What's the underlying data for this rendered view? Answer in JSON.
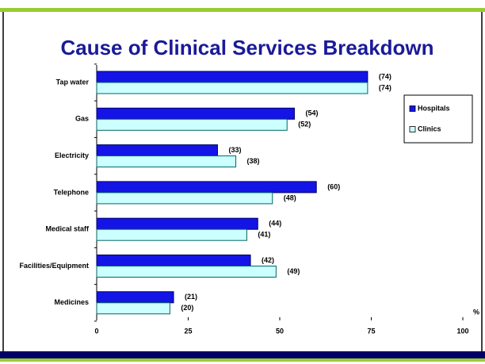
{
  "chart_data": {
    "type": "bar",
    "orientation": "horizontal",
    "title": "Cause of Clinical Services Breakdown",
    "categories": [
      "Tap water",
      "Gas",
      "Electricity",
      "Telephone",
      "Medical staff",
      "Facilities/Equipment",
      "Medicines"
    ],
    "series": [
      {
        "name": "Hospitals",
        "color": "#1414e6",
        "values": [
          74,
          54,
          33,
          60,
          44,
          42,
          21
        ],
        "value_labels": [
          "(74)",
          "(54)",
          "(33)",
          "(60)",
          "(44)",
          "(42)",
          "(21)"
        ]
      },
      {
        "name": "Clinics",
        "color": "#ccffff",
        "values": [
          74,
          52,
          38,
          48,
          41,
          49,
          20
        ],
        "value_labels": [
          "(74)",
          "(52)",
          "(38)",
          "(48)",
          "(41)",
          "(49)",
          "(20)"
        ]
      }
    ],
    "x_label": "%",
    "xlim": [
      0,
      100
    ],
    "xticks": [
      0,
      25,
      50,
      75,
      100
    ],
    "legend": "upper right"
  }
}
